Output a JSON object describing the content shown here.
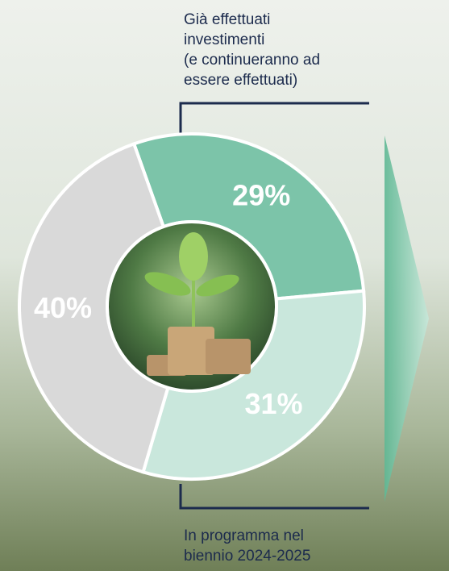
{
  "chart_data": {
    "type": "donut",
    "values": [
      29,
      31,
      40
    ],
    "value_labels": [
      "29%",
      "31%",
      "40%"
    ],
    "colors": [
      "#7cc4a9",
      "#c9e7dc",
      "#d9d9d9"
    ],
    "annotations": [
      [
        "Già effettuati",
        "investimenti",
        "(e continueranno ad",
        "essere effettuati)"
      ],
      [
        "In programma nel",
        "biennio 2024-2025"
      ]
    ]
  }
}
